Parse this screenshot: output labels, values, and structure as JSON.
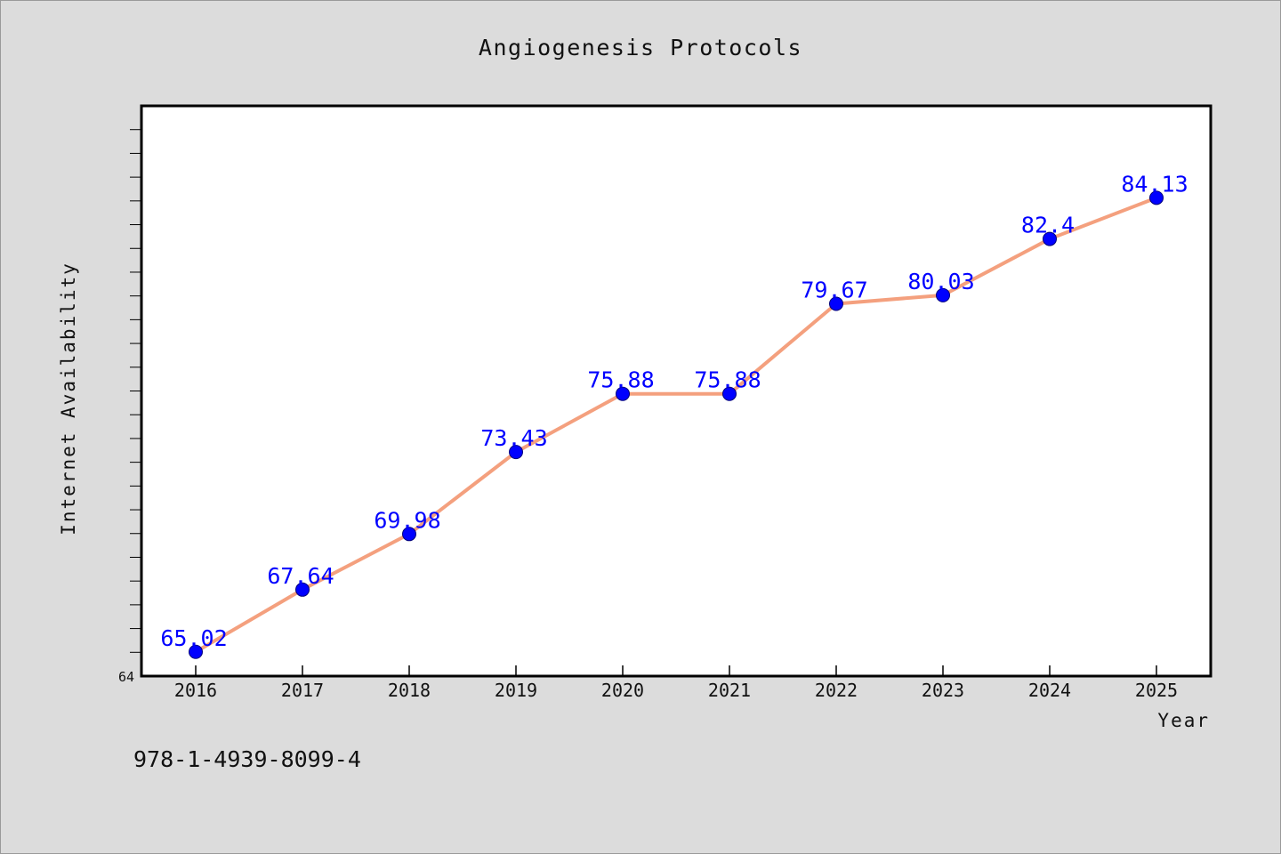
{
  "chart_data": {
    "type": "line",
    "title": "Angiogenesis Protocols",
    "xlabel": "Year",
    "ylabel": "Internet Availability",
    "categories": [
      "2016",
      "2017",
      "2018",
      "2019",
      "2020",
      "2021",
      "2022",
      "2023",
      "2024",
      "2025"
    ],
    "series": [
      {
        "values": [
          65.02,
          67.64,
          69.98,
          73.43,
          75.88,
          75.88,
          79.67,
          80.03,
          82.4,
          84.13
        ],
        "data_labels": [
          "65.02",
          "67.64",
          "69.98",
          "73.43",
          "75.88",
          "75.88",
          "79.67",
          "80.03",
          "82.4",
          "84.13"
        ],
        "line_color": "#f4a07e",
        "marker_color": "#0000ff"
      }
    ],
    "ylim": [
      64,
      88
    ],
    "ytick_labels": [
      "64"
    ],
    "grid": false,
    "legend": "none"
  },
  "footer_text": "978-1-4939-8099-4",
  "colors": {
    "background": "#dcdcdc",
    "plot_background": "#ffffff",
    "data_label": "#0000ff"
  }
}
